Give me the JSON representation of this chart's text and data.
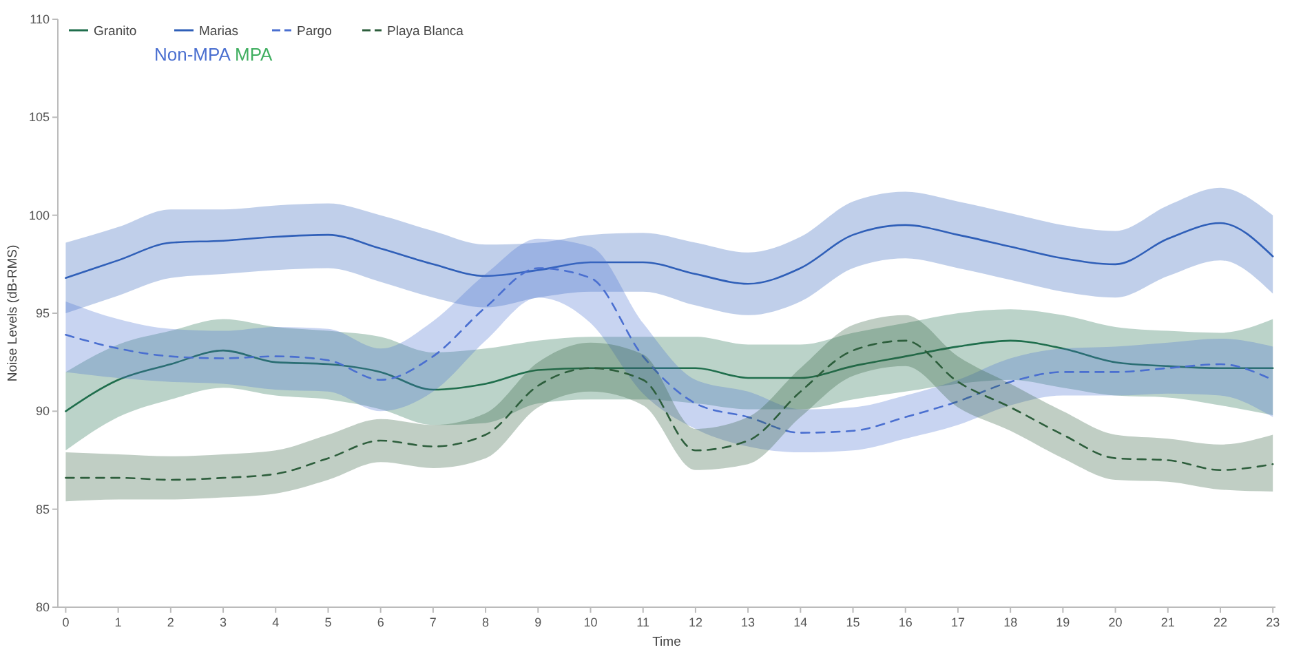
{
  "chart_data": {
    "type": "line",
    "xlabel": "Time",
    "ylabel": "Noise Levels (dB-RMS)",
    "x": [
      0,
      1,
      2,
      3,
      4,
      5,
      6,
      7,
      8,
      9,
      10,
      11,
      12,
      13,
      14,
      15,
      16,
      17,
      18,
      19,
      20,
      21,
      22,
      23
    ],
    "xlim": [
      -0.15,
      23.05
    ],
    "xticks": [
      0,
      1,
      2,
      3,
      4,
      5,
      6,
      7,
      8,
      9,
      10,
      11,
      12,
      13,
      14,
      15,
      16,
      17,
      18,
      19,
      20,
      21,
      22,
      23
    ],
    "ylim": [
      80,
      110
    ],
    "yticks": [
      80,
      85,
      90,
      95,
      100,
      105,
      110
    ],
    "grid": false,
    "legend": "top left",
    "marker": "none",
    "annotations": [
      "Non-MPA",
      "MPA"
    ],
    "series": [
      {
        "name": "Granito",
        "color": "#1f6e4c",
        "line_style": "solid",
        "values": [
          90.0,
          91.6,
          92.4,
          93.1,
          92.5,
          92.4,
          92.0,
          91.1,
          91.4,
          92.1,
          92.2,
          92.2,
          92.2,
          91.7,
          91.7,
          92.3,
          92.8,
          93.3,
          93.6,
          93.2,
          92.5,
          92.3,
          92.2,
          92.2
        ],
        "lower": [
          88.0,
          89.7,
          90.6,
          91.2,
          90.8,
          90.6,
          90.1,
          89.3,
          89.4,
          90.4,
          90.6,
          90.6,
          90.4,
          90.1,
          90.1,
          90.6,
          91.0,
          91.4,
          91.6,
          91.2,
          90.8,
          90.7,
          90.3,
          89.8
        ],
        "upper": [
          92.0,
          93.4,
          94.1,
          94.7,
          94.3,
          94.1,
          93.8,
          93.0,
          93.2,
          93.6,
          93.8,
          93.8,
          93.8,
          93.4,
          93.4,
          94.0,
          94.5,
          95.0,
          95.2,
          94.9,
          94.3,
          94.1,
          94.0,
          94.7
        ]
      },
      {
        "name": "Marias",
        "color": "#2f5fb8",
        "line_style": "solid",
        "values": [
          96.8,
          97.7,
          98.6,
          98.7,
          98.9,
          99.0,
          98.3,
          97.5,
          96.9,
          97.2,
          97.6,
          97.6,
          97.0,
          96.5,
          97.3,
          99.0,
          99.5,
          99.0,
          98.4,
          97.8,
          97.5,
          98.8,
          99.6,
          97.9
        ],
        "lower": [
          95.0,
          95.9,
          96.8,
          97.0,
          97.2,
          97.3,
          96.6,
          95.8,
          95.3,
          95.8,
          96.1,
          96.1,
          95.4,
          94.9,
          95.6,
          97.3,
          97.8,
          97.3,
          96.7,
          96.1,
          95.8,
          96.9,
          97.7,
          96.0
        ],
        "upper": [
          98.6,
          99.4,
          100.3,
          100.3,
          100.5,
          100.6,
          100.0,
          99.2,
          98.5,
          98.6,
          99.0,
          99.1,
          98.6,
          98.1,
          98.9,
          100.7,
          101.2,
          100.7,
          100.1,
          99.5,
          99.2,
          100.5,
          101.4,
          100.0
        ]
      },
      {
        "name": "Pargo",
        "color": "#4a6fd0",
        "line_style": "dashed",
        "values": [
          93.9,
          93.2,
          92.8,
          92.7,
          92.8,
          92.6,
          91.6,
          92.8,
          95.3,
          97.3,
          96.8,
          92.8,
          90.4,
          89.7,
          88.9,
          89.0,
          89.7,
          90.5,
          91.5,
          92.0,
          92.0,
          92.2,
          92.4,
          91.6
        ],
        "lower": [
          92.0,
          91.7,
          91.5,
          91.4,
          91.1,
          91.0,
          90.0,
          91.0,
          93.6,
          95.8,
          94.5,
          90.9,
          89.1,
          88.2,
          87.9,
          88.0,
          88.6,
          89.3,
          90.3,
          90.8,
          90.8,
          90.9,
          90.8,
          89.7
        ],
        "upper": [
          95.6,
          94.7,
          94.2,
          94.1,
          94.3,
          94.2,
          93.2,
          94.6,
          97.0,
          98.8,
          98.4,
          94.5,
          91.6,
          91.0,
          90.1,
          90.2,
          90.8,
          91.6,
          92.7,
          93.2,
          93.3,
          93.5,
          93.7,
          93.3
        ]
      },
      {
        "name": "Playa Blanca",
        "color": "#2d5e3c",
        "line_style": "dashed",
        "values": [
          86.6,
          86.6,
          86.5,
          86.6,
          86.8,
          87.6,
          88.5,
          88.2,
          88.8,
          91.3,
          92.2,
          91.6,
          88.0,
          88.5,
          91.0,
          93.1,
          93.6,
          91.5,
          90.2,
          88.8,
          87.6,
          87.5,
          87.0,
          87.3
        ],
        "lower": [
          85.4,
          85.5,
          85.5,
          85.6,
          85.8,
          86.5,
          87.4,
          87.1,
          87.6,
          90.2,
          91.0,
          90.3,
          87.0,
          87.3,
          89.7,
          91.8,
          92.3,
          90.2,
          89.0,
          87.6,
          86.5,
          86.4,
          86.0,
          85.9
        ],
        "upper": [
          87.9,
          87.8,
          87.7,
          87.8,
          88.0,
          88.8,
          89.6,
          89.3,
          89.9,
          92.5,
          93.5,
          92.9,
          89.1,
          89.7,
          92.2,
          94.4,
          94.9,
          92.8,
          91.4,
          90.0,
          88.8,
          88.6,
          88.3,
          88.8
        ]
      }
    ]
  }
}
